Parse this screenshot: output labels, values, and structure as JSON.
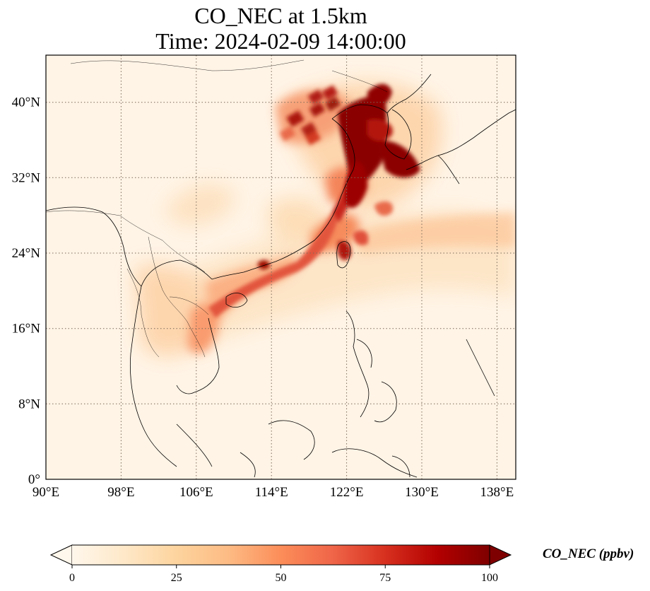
{
  "title": {
    "line1": "CO_NEC at 1.5km",
    "line2": "Time: 2024-02-09 14:00:00"
  },
  "map": {
    "projection": "PlateCarree",
    "lon_range": [
      90,
      140
    ],
    "lat_range": [
      0,
      45
    ],
    "gridlines": "dotted",
    "lon_ticks": [
      "90°E",
      "98°E",
      "106°E",
      "114°E",
      "122°E",
      "130°E",
      "138°E"
    ],
    "lat_ticks": [
      "0°",
      "8°N",
      "16°N",
      "24°N",
      "32°N",
      "40°N"
    ],
    "colormap": "OrRd",
    "variable": "CO_NEC",
    "units": "ppbv"
  },
  "colorbar": {
    "label": "CO_NEC (ppbv)",
    "ticks": [
      "0",
      "25",
      "50",
      "75",
      "100"
    ],
    "range": [
      0,
      100
    ],
    "extend": "both",
    "colors": [
      "#fff7ec",
      "#fee8c8",
      "#fdd49e",
      "#fdbb84",
      "#fc8d59",
      "#ef6548",
      "#d7301f",
      "#b30000",
      "#7f0000"
    ]
  }
}
